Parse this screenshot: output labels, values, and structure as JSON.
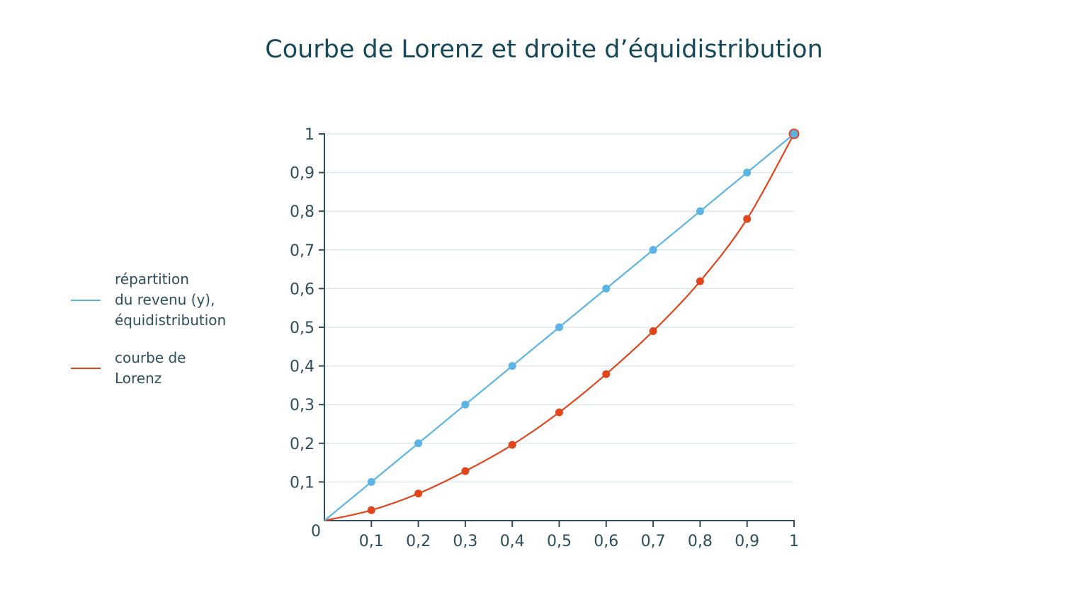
{
  "title": "Courbe de Lorenz et droite d’équidistribution",
  "legend": [
    {
      "label": "répartition\ndu revenu (y),\néquidistribution",
      "color": "#5bb4e5"
    },
    {
      "label": "courbe de\nLorenz",
      "color": "#e1451c"
    }
  ],
  "colors": {
    "axis": "#2d4e5a",
    "grid": "#dde9ef",
    "equality": "#5bb4e5",
    "lorenz": "#e1451c",
    "title": "#17485a"
  },
  "chart_data": {
    "type": "line",
    "title": "Courbe de Lorenz et droite d’équidistribution",
    "xlabel": "",
    "ylabel": "",
    "xlim": [
      0,
      1
    ],
    "ylim": [
      0,
      1
    ],
    "grid": true,
    "legend_position": "left",
    "x_tick_labels": [
      "0",
      "0,1",
      "0,2",
      "0,3",
      "0,4",
      "0,5",
      "0,6",
      "0,7",
      "0,8",
      "0,9",
      "1"
    ],
    "y_tick_labels": [
      "0,1",
      "0,2",
      "0,3",
      "0,4",
      "0,5",
      "0,6",
      "0,7",
      "0,8",
      "0,9",
      "1"
    ],
    "x": [
      0,
      0.1,
      0.2,
      0.3,
      0.4,
      0.5,
      0.6,
      0.7,
      0.8,
      0.9,
      1
    ],
    "series": [
      {
        "name": "répartition du revenu (y), équidistribution",
        "values": [
          0,
          0.1,
          0.2,
          0.3,
          0.4,
          0.5,
          0.6,
          0.7,
          0.8,
          0.9,
          1
        ]
      },
      {
        "name": "courbe de Lorenz",
        "values": [
          0,
          0.027,
          0.07,
          0.128,
          0.196,
          0.28,
          0.379,
          0.49,
          0.619,
          0.78,
          1
        ]
      }
    ]
  }
}
